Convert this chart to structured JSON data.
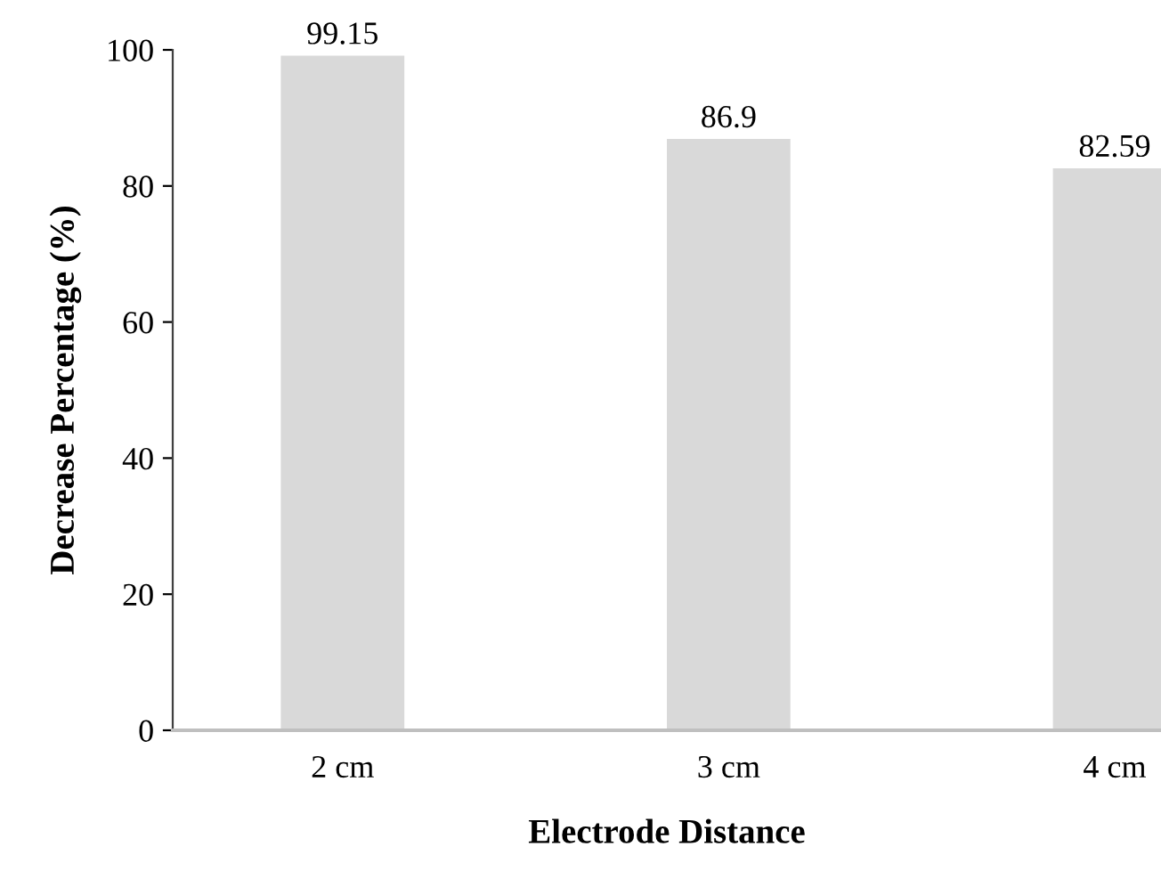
{
  "chart_data": {
    "type": "bar",
    "xlabel": "Electrode Distance",
    "ylabel": "Decrease Percentage (%)",
    "categories": [
      "2 cm",
      "3 cm",
      "4 cm"
    ],
    "values": [
      99.15,
      86.9,
      82.59
    ],
    "color": "#d9d9d9",
    "ylim": [
      0,
      100
    ],
    "yticks": [
      0,
      20,
      40,
      60,
      80,
      100
    ],
    "grid": false,
    "data_labels": true
  }
}
